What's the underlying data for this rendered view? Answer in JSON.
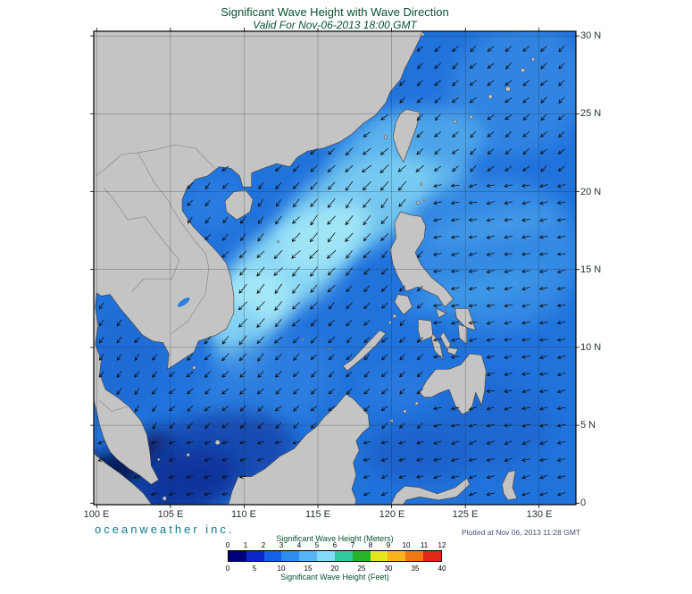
{
  "header": {
    "title": "Significant Wave Height with Wave Direction",
    "subtitle": "Valid For Nov-06-2013 18:00 GMT"
  },
  "axes": {
    "lon_labels": [
      "100 E",
      "105 E",
      "110 E",
      "115 E",
      "120 E",
      "125 E",
      "130 E"
    ],
    "lat_labels": [
      "30 N",
      "25 N",
      "20 N",
      "15 N",
      "10 N",
      "5 N",
      "0"
    ],
    "lon_values": [
      100,
      105,
      110,
      115,
      120,
      125,
      130
    ],
    "lat_values": [
      30,
      25,
      20,
      15,
      10,
      5,
      0
    ]
  },
  "footer": {
    "brand": "oceanweather inc.",
    "plotted": "Plotted at Nov 06, 2013 11:28 GMT"
  },
  "legend": {
    "meters_label": "Significant Wave Height (Meters)",
    "feet_label": "Significant Wave Height (Feet)",
    "meters_ticks": [
      "0",
      "1",
      "2",
      "3",
      "4",
      "5",
      "6",
      "7",
      "8",
      "9",
      "10",
      "11",
      "12"
    ],
    "feet_ticks": [
      "0",
      "5",
      "10",
      "15",
      "20",
      "25",
      "30",
      "35",
      "40"
    ],
    "colors": [
      "#00007d",
      "#0a28c8",
      "#1460e6",
      "#2d8cf0",
      "#55b4f5",
      "#82dcf7",
      "#32c8a0",
      "#28b428",
      "#e6e61e",
      "#fab41e",
      "#f07814",
      "#e12814"
    ]
  },
  "wave_field": {
    "units": "meters",
    "peak_region": "central South China Sea (approx. 11-19 N, 109-118 E)",
    "peak_height_m": 4.5,
    "open_pacific_height_m": 2.5,
    "gulf_of_thailand_height_m": 1.5,
    "java_sea_strait_height_m": 0.5,
    "dominant_direction": "waves moving toward the southwest (northeast monsoon)",
    "bearings_toward_deg": {
      "south_china_sea": 222,
      "east_china_sea": 228,
      "east_of_philippines": 258,
      "gulf_of_thailand": 216,
      "southern_seas": 252
    }
  }
}
